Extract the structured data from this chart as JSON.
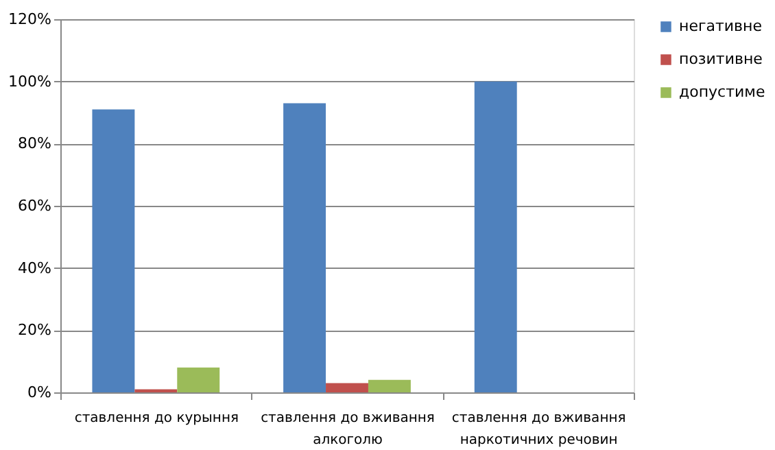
{
  "chart_data": {
    "type": "bar",
    "categories": [
      "ставлення до курыння",
      "ставлення до вживання алкоголю",
      "ставлення до вживання наркотичних речовин"
    ],
    "series": [
      {
        "name": "негативне",
        "color": "#4f81bd",
        "values": [
          91,
          93,
          100
        ]
      },
      {
        "name": "позитивне",
        "color": "#c0504d",
        "values": [
          1,
          3,
          0
        ]
      },
      {
        "name": "допустиме",
        "color": "#9bbb59",
        "values": [
          8,
          4,
          0
        ]
      }
    ],
    "ylim": [
      0,
      120
    ],
    "yticks": [
      {
        "value": 0,
        "label": "0%"
      },
      {
        "value": 20,
        "label": "20%"
      },
      {
        "value": 40,
        "label": "40%"
      },
      {
        "value": 60,
        "label": "60%"
      },
      {
        "value": 80,
        "label": "80%"
      },
      {
        "value": 100,
        "label": "100%"
      },
      {
        "value": 120,
        "label": "120%"
      }
    ],
    "grid": "y",
    "legend": "right"
  }
}
